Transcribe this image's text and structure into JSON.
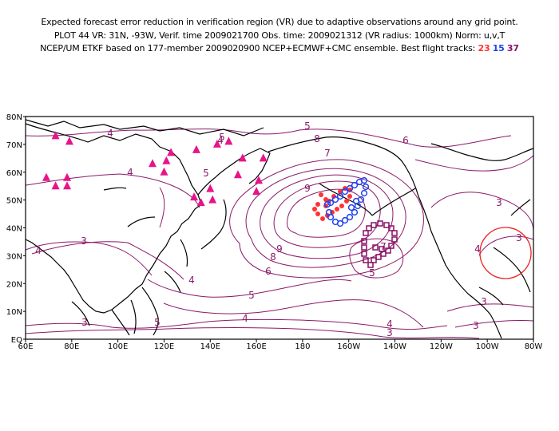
{
  "title": {
    "line1": "Expected forecast error reduction in verification region (VR) due to adaptive observations around any grid point.",
    "line2": "PLOT 44 VR: 31N, -93W, Verif. time 2009021700 Obs. time: 2009021312 (VR radius: 1000km) Norm: u,v,T",
    "line3_prefix": "NCEP/UM ETKF based on 177-member 2009020900 NCEP+ECMWF+CMC ensemble. Best flight tracks:",
    "tracks": [
      {
        "label": "23",
        "color": "#ff3333"
      },
      {
        "label": "15",
        "color": "#2244ee"
      },
      {
        "label": "37",
        "color": "#881166"
      }
    ]
  },
  "axes": {
    "x_ticks": [
      "60E",
      "80E",
      "100E",
      "120E",
      "140E",
      "160E",
      "180",
      "160W",
      "140W",
      "120W",
      "100W",
      "80W"
    ],
    "y_ticks": [
      "EQ",
      "10N",
      "20N",
      "30N",
      "40N",
      "50N",
      "60N",
      "70N",
      "80N"
    ]
  },
  "contour_labels": [
    "3",
    "4",
    "4",
    "4",
    "4",
    "5",
    "5",
    "6",
    "7",
    "8",
    "9",
    "9",
    "8",
    "6",
    "5",
    "5",
    "5",
    "4",
    "4",
    "4",
    "3",
    "3",
    "3",
    "3",
    "3",
    "4",
    "5",
    "7",
    "3"
  ],
  "colors": {
    "contour": "#8b1a6a",
    "triangles": "#e8138a",
    "track23": "#ff3333",
    "track15": "#2244ee",
    "track37": "#881166",
    "vr_circle": "#ee2222"
  },
  "verification_region": {
    "lat": 31,
    "lon": -93,
    "radius_km": 1000
  },
  "station_markers": [
    {
      "lon": 73,
      "lat": 73
    },
    {
      "lon": 79,
      "lat": 71
    },
    {
      "lon": 69,
      "lat": 58
    },
    {
      "lon": 73,
      "lat": 55
    },
    {
      "lon": 78,
      "lat": 58
    },
    {
      "lon": 78,
      "lat": 55
    },
    {
      "lon": 115,
      "lat": 63
    },
    {
      "lon": 120,
      "lat": 60
    },
    {
      "lon": 123,
      "lat": 67
    },
    {
      "lon": 121,
      "lat": 64
    },
    {
      "lon": 134,
      "lat": 68
    },
    {
      "lon": 148,
      "lat": 71
    },
    {
      "lon": 143,
      "lat": 70
    },
    {
      "lon": 154,
      "lat": 65
    },
    {
      "lon": 163,
      "lat": 65
    },
    {
      "lon": 152,
      "lat": 59
    },
    {
      "lon": 133,
      "lat": 51
    },
    {
      "lon": 136,
      "lat": 49
    },
    {
      "lon": 140,
      "lat": 54
    },
    {
      "lon": 141,
      "lat": 50
    },
    {
      "lon": 160,
      "lat": 53
    },
    {
      "lon": 161,
      "lat": 57
    }
  ]
}
